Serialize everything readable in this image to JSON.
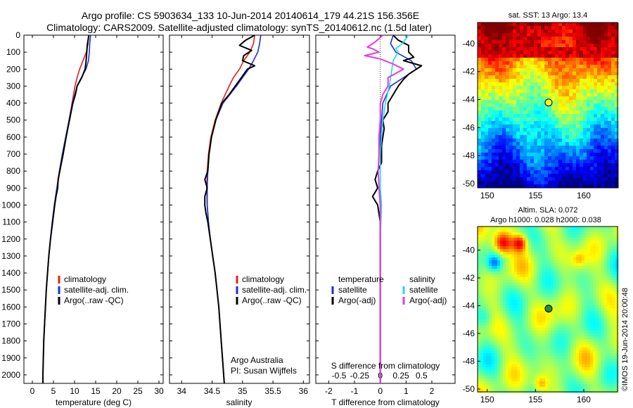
{
  "figure": {
    "title_line1": "Argo profile: CS 5903634_133 10-Jun-2014 20140614_179 44.21S 156.356E",
    "title_line2": "Climatology: CARS2009. Satellite-adjusted climatology: synTS_20140612.nc (1.5d later)",
    "credit": "Argo Australia",
    "pi": "PI: Susan Wijffels",
    "watermark": "©IMOS 19-Jun-2014 20:00:48"
  },
  "colors": {
    "climatology": "#e0201c",
    "satellite": "#1c2fd6",
    "argo": "#000000",
    "satellite_salinity": "#22d8f0",
    "argo_salinity_adj": "#e23ce0"
  },
  "depth_axis": {
    "ylim": [
      0,
      2050
    ],
    "ticks": [
      0,
      100,
      200,
      300,
      400,
      500,
      600,
      700,
      800,
      900,
      1000,
      1100,
      1200,
      1300,
      1400,
      1500,
      1600,
      1700,
      1800,
      1900,
      2000
    ]
  },
  "chart_data": [
    {
      "type": "line",
      "xlabel": "temperature (deg C)",
      "xlim": [
        -2,
        31
      ],
      "xticks": [
        0,
        5,
        10,
        15,
        20,
        25,
        30
      ],
      "ylim": [
        2050,
        0
      ],
      "legend": [
        "climatology",
        "satellite-adj. clim.",
        "Argo(..raw -QC)"
      ],
      "series": [
        {
          "name": "climatology",
          "depth": [
            0,
            50,
            100,
            150,
            200,
            250,
            300,
            400,
            500,
            600,
            700,
            800,
            900,
            1000,
            1100,
            1200,
            1300,
            1400,
            1500,
            1600,
            1700,
            1800,
            1900,
            2000,
            2050
          ],
          "values": [
            13.3,
            13.2,
            12.8,
            12.0,
            11.2,
            10.6,
            10.1,
            9.4,
            8.7,
            8.0,
            7.2,
            6.5,
            5.9,
            5.3,
            4.8,
            4.3,
            3.9,
            3.6,
            3.3,
            3.1,
            2.9,
            2.7,
            2.6,
            2.5,
            2.5
          ]
        },
        {
          "name": "satellite-adj. clim.",
          "depth": [
            0,
            50,
            100,
            150,
            200,
            250,
            300,
            400,
            500,
            600,
            700,
            800,
            900,
            1000,
            1100,
            1200,
            1300,
            1400,
            1500,
            1600,
            1700,
            1800,
            1900,
            2000,
            2050
          ],
          "values": [
            13.8,
            13.6,
            13.5,
            13.3,
            12.7,
            11.6,
            10.6,
            9.5,
            8.7,
            7.9,
            7.1,
            6.4,
            5.8,
            5.2,
            4.7,
            4.3,
            3.9,
            3.6,
            3.3,
            3.1,
            2.9,
            2.7,
            2.6,
            2.5,
            2.5
          ]
        },
        {
          "name": "Argo(..raw -QC)",
          "depth": [
            0,
            30,
            60,
            100,
            130,
            160,
            200,
            250,
            300,
            350,
            400,
            500,
            600,
            700,
            800,
            850,
            900,
            950,
            1000,
            1100,
            1200,
            1300,
            1400,
            1500,
            1600,
            1700,
            1800,
            1900,
            2000,
            2050
          ],
          "values": [
            13.4,
            13.2,
            13.0,
            12.9,
            12.8,
            12.7,
            12.5,
            11.7,
            10.6,
            10.2,
            9.6,
            8.8,
            8.0,
            7.3,
            6.5,
            6.1,
            6.0,
            5.6,
            5.3,
            4.8,
            4.3,
            3.9,
            3.6,
            3.3,
            3.1,
            2.9,
            2.7,
            2.6,
            2.5,
            2.5
          ]
        }
      ]
    },
    {
      "type": "line",
      "xlabel": "salinity",
      "xlim": [
        33.8,
        36.1
      ],
      "xticks": [
        34,
        34.5,
        35,
        35.5,
        36
      ],
      "ylim": [
        2050,
        0
      ],
      "legend": [
        "climatology",
        "satellite-adj. clim.",
        "Argo(..raw -QC)"
      ],
      "series": [
        {
          "name": "climatology",
          "depth": [
            0,
            50,
            100,
            150,
            200,
            250,
            300,
            400,
            500,
            600,
            700,
            800,
            900,
            1000,
            1100,
            1200,
            1300,
            1400,
            1500,
            1600,
            1700,
            1800,
            1900,
            2000,
            2050
          ],
          "values": [
            35.2,
            35.18,
            35.12,
            35.02,
            34.95,
            34.85,
            34.78,
            34.65,
            34.55,
            34.48,
            34.44,
            34.42,
            34.41,
            34.42,
            34.44,
            34.47,
            34.51,
            34.55,
            34.58,
            34.61,
            34.63,
            34.65,
            34.67,
            34.69,
            34.7
          ]
        },
        {
          "name": "satellite-adj. clim.",
          "depth": [
            0,
            50,
            100,
            150,
            200,
            250,
            300,
            400,
            500,
            600,
            700,
            800,
            900,
            1000,
            1100,
            1200,
            1300,
            1400,
            1500,
            1600,
            1700,
            1800,
            1900,
            2000,
            2050
          ],
          "values": [
            35.3,
            35.28,
            35.25,
            35.18,
            35.1,
            35.0,
            34.9,
            34.68,
            34.56,
            34.49,
            34.45,
            34.43,
            34.42,
            34.42,
            34.44,
            34.47,
            34.51,
            34.55,
            34.58,
            34.61,
            34.63,
            34.65,
            34.67,
            34.69,
            34.7
          ]
        },
        {
          "name": "Argo(..raw -QC)",
          "depth": [
            0,
            30,
            60,
            90,
            120,
            150,
            180,
            200,
            250,
            300,
            350,
            400,
            500,
            600,
            700,
            800,
            850,
            900,
            950,
            1000,
            1050,
            1100,
            1200,
            1300,
            1400,
            1500,
            1600,
            1700,
            1800,
            1900,
            2000,
            2050
          ],
          "values": [
            35.2,
            35.05,
            34.95,
            35.15,
            35.02,
            35.0,
            35.2,
            35.08,
            34.98,
            34.88,
            34.78,
            34.66,
            34.56,
            34.49,
            34.45,
            34.43,
            34.38,
            34.42,
            34.38,
            34.38,
            34.4,
            34.43,
            34.47,
            34.51,
            34.55,
            34.58,
            34.61,
            34.63,
            34.65,
            34.67,
            34.69,
            34.7
          ]
        }
      ]
    },
    {
      "type": "line",
      "xlabel": "T difference from climatology",
      "xlabel_top": "S difference from climatology",
      "xlim": [
        -2.5,
        2.9
      ],
      "xticks": [
        -2,
        -1,
        0,
        1,
        2
      ],
      "xticks_top": [
        {
          "pos": -1.6,
          "label": "-0.5"
        },
        {
          "pos": -0.8,
          "label": "-0.25"
        },
        {
          "pos": 0,
          "label": "0"
        },
        {
          "pos": 0.8,
          "label": "0.25"
        },
        {
          "pos": 1.6,
          "label": "0.5"
        }
      ],
      "ylim": [
        2050,
        0
      ],
      "legend_left_title": "temperature",
      "legend_right_title": "salinity",
      "legend_left": [
        "satellite",
        "Argo(-adj)"
      ],
      "legend_right": [
        "satellite",
        "Argo(-adj)"
      ],
      "series": [
        {
          "name": "satellite",
          "quantity": "temperature",
          "depth": [
            0,
            50,
            100,
            150,
            200,
            300,
            400,
            500,
            600,
            700,
            800,
            900,
            1000,
            1200,
            1400,
            1600,
            1800,
            2000,
            2050
          ],
          "values": [
            0.5,
            0.4,
            0.6,
            1.2,
            1.4,
            0.4,
            0.1,
            0.05,
            0,
            0,
            0,
            0,
            0,
            0,
            0,
            0,
            0,
            0,
            0
          ]
        },
        {
          "name": "Argo(-adj)",
          "quantity": "temperature",
          "depth": [
            0,
            30,
            60,
            100,
            130,
            150,
            180,
            200,
            230,
            260,
            300,
            350,
            400,
            450,
            500,
            550,
            600,
            650,
            700,
            750,
            800,
            850,
            900,
            950,
            1000,
            1050,
            1100,
            1200,
            1300,
            1400,
            1500,
            1600,
            1700,
            1800,
            1900,
            2000,
            2050
          ],
          "values": [
            0.5,
            0.7,
            1.1,
            1.1,
            1.3,
            0.9,
            1.6,
            1.4,
            1.1,
            0.9,
            0.7,
            0.5,
            0.3,
            0.3,
            0.1,
            0.15,
            0.1,
            0.05,
            0.05,
            0.05,
            -0.1,
            -0.2,
            -0.1,
            -0.3,
            -0.1,
            -0.05,
            0,
            0,
            0,
            0,
            0,
            0,
            0,
            0,
            0,
            0,
            0
          ]
        },
        {
          "name": "satellite",
          "quantity": "salinity",
          "depth": [
            0,
            50,
            80,
            100,
            150,
            200,
            300,
            400,
            500,
            600,
            700,
            800,
            900,
            1000,
            1200,
            1400,
            1600,
            1800,
            2000,
            2050
          ],
          "values": [
            1.1,
            0.85,
            0.6,
            0.7,
            0.5,
            0.45,
            0.35,
            0.2,
            0.1,
            0.05,
            0,
            0,
            0,
            0.05,
            0,
            0,
            0,
            0,
            0,
            0
          ]
        },
        {
          "name": "Argo(-adj)",
          "quantity": "salinity",
          "depth": [
            0,
            40,
            70,
            80,
            100,
            120,
            140,
            170,
            200,
            250,
            300,
            350,
            400,
            500,
            600,
            700,
            800,
            900,
            1000,
            1100,
            1200,
            1400,
            1600,
            1800,
            2000,
            2050
          ],
          "values": [
            0.1,
            -0.2,
            -0.5,
            -0.3,
            -0.05,
            -0.6,
            0,
            0.5,
            0.9,
            0.3,
            0.3,
            0.1,
            0,
            0,
            -0.05,
            -0.05,
            -0.08,
            -0.05,
            0,
            0,
            0,
            0,
            0,
            0,
            0,
            0
          ]
        }
      ]
    },
    {
      "type": "heatmap",
      "title": "sat. SST: 13 Argo: 13.4",
      "xlim": [
        149,
        163.5
      ],
      "ylim": [
        -50.3,
        -38.5
      ],
      "xticks": [
        150,
        155,
        160
      ],
      "yticks": [
        -40,
        -42,
        -44,
        -46,
        -48,
        -50
      ],
      "marker": {
        "lon": 156.356,
        "lat": -44.21,
        "color": "#f4f02a"
      }
    },
    {
      "type": "heatmap",
      "title_line1": "Altim. SLA: 0.072",
      "title_line2": "Argo h1000: 0.028 h2000: 0.038",
      "xlim": [
        149,
        163.5
      ],
      "ylim": [
        -50.2,
        -38.3
      ],
      "xticks": [
        150,
        155,
        160
      ],
      "yticks": [
        -40,
        -42,
        -44,
        -46,
        -48,
        -50
      ],
      "marker": {
        "lon": 156.356,
        "lat": -44.21,
        "color": "#2e8a2e"
      }
    }
  ]
}
